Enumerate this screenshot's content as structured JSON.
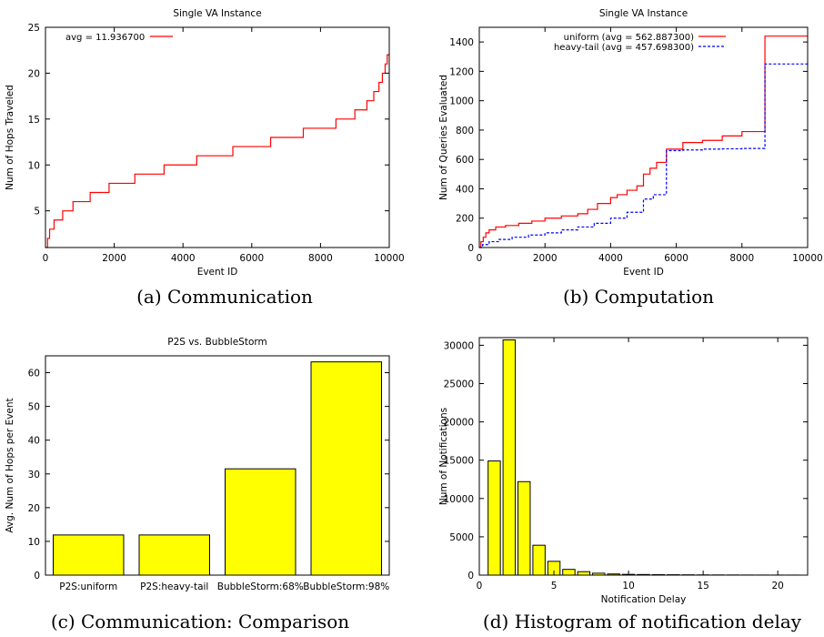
{
  "chart_data": [
    {
      "type": "line",
      "title": "Single VA Instance",
      "xlabel": "Event ID",
      "ylabel": "Num of Hops Traveled",
      "xlim": [
        0,
        10000
      ],
      "ylim": [
        1,
        25
      ],
      "xticks": [
        0,
        2000,
        4000,
        6000,
        8000,
        10000
      ],
      "yticks": [
        5,
        10,
        15,
        20,
        25
      ],
      "grid": false,
      "legend_position": "top-left",
      "caption": "(a)  Communication",
      "series": [
        {
          "name": "avg = 11.936700",
          "color": "#ff0000",
          "style": "solid",
          "step": true,
          "x": [
            0,
            60,
            120,
            250,
            500,
            800,
            1300,
            1850,
            2600,
            3450,
            4400,
            5450,
            6550,
            7500,
            8450,
            9000,
            9350,
            9550,
            9700,
            9800,
            9880,
            9940,
            9980,
            10000
          ],
          "y": [
            1,
            2,
            3,
            4,
            5,
            6,
            7,
            8,
            9,
            10,
            11,
            12,
            13,
            14,
            15,
            16,
            17,
            18,
            19,
            20,
            21,
            22,
            22,
            22
          ]
        }
      ]
    },
    {
      "type": "line",
      "title": "Single VA Instance",
      "xlabel": "Event ID",
      "ylabel": "Num of Queries Evaluated",
      "xlim": [
        0,
        10000
      ],
      "ylim": [
        0,
        1500
      ],
      "xticks": [
        0,
        2000,
        4000,
        6000,
        8000,
        10000
      ],
      "yticks": [
        0,
        200,
        400,
        600,
        800,
        1000,
        1200,
        1400
      ],
      "grid": false,
      "legend_position": "top-right",
      "caption": "(b)  Computation",
      "series": [
        {
          "name": "uniform (avg = 562.887300)",
          "color": "#ff0000",
          "style": "solid",
          "step": true,
          "x": [
            0,
            50,
            120,
            200,
            300,
            500,
            800,
            1200,
            1600,
            2000,
            2500,
            3000,
            3300,
            3600,
            4000,
            4200,
            4500,
            4800,
            5000,
            5200,
            5400,
            5700,
            6200,
            6800,
            7400,
            8000,
            8700,
            10000
          ],
          "y": [
            0,
            40,
            70,
            100,
            120,
            140,
            150,
            165,
            180,
            200,
            215,
            230,
            260,
            300,
            340,
            360,
            390,
            420,
            500,
            540,
            580,
            670,
            715,
            730,
            760,
            790,
            1440,
            1440
          ]
        },
        {
          "name": "heavy-tail (avg = 457.698300)",
          "color": "#0000ff",
          "style": "dashed",
          "step": true,
          "x": [
            0,
            100,
            300,
            600,
            1000,
            1500,
            2000,
            2500,
            3000,
            3500,
            4000,
            4500,
            5000,
            5300,
            5700,
            6200,
            6800,
            7400,
            8000,
            8700,
            10000
          ],
          "y": [
            0,
            20,
            40,
            55,
            70,
            85,
            100,
            120,
            140,
            165,
            200,
            240,
            330,
            360,
            660,
            665,
            670,
            672,
            675,
            1250,
            1250
          ]
        }
      ]
    },
    {
      "type": "bar",
      "title": "P2S vs. BubbleStorm",
      "xlabel": "",
      "ylabel": "Avg. Num of Hops per Event",
      "ylim": [
        0,
        65
      ],
      "yticks": [
        0,
        10,
        20,
        30,
        40,
        50,
        60
      ],
      "grid": false,
      "bar_color": "#ffff00",
      "caption": "(c)  Communication: Comparison",
      "categories": [
        "P2S:uniform",
        "P2S:heavy-tail",
        "BubbleStorm:68%",
        "BubbleStorm:98%"
      ],
      "values": [
        11.9,
        11.9,
        31.5,
        63.2
      ]
    },
    {
      "type": "bar",
      "title": "",
      "xlabel": "Notification Delay",
      "ylabel": "Num of Notifications",
      "xlim": [
        0,
        22
      ],
      "ylim": [
        0,
        31000
      ],
      "xticks": [
        0,
        5,
        10,
        15,
        20
      ],
      "yticks": [
        0,
        5000,
        10000,
        15000,
        20000,
        25000,
        30000
      ],
      "grid": false,
      "bar_color": "#ffff00",
      "caption": "(d)  Histogram of notification delay",
      "x": [
        1,
        2,
        3,
        4,
        5,
        6,
        7,
        8,
        9,
        10,
        11,
        12,
        13,
        14,
        15,
        16,
        17,
        18,
        19,
        20,
        21
      ],
      "values": [
        14900,
        30700,
        12200,
        3900,
        1800,
        750,
        450,
        250,
        150,
        100,
        80,
        60,
        50,
        40,
        30,
        25,
        20,
        15,
        12,
        10,
        8
      ]
    }
  ]
}
